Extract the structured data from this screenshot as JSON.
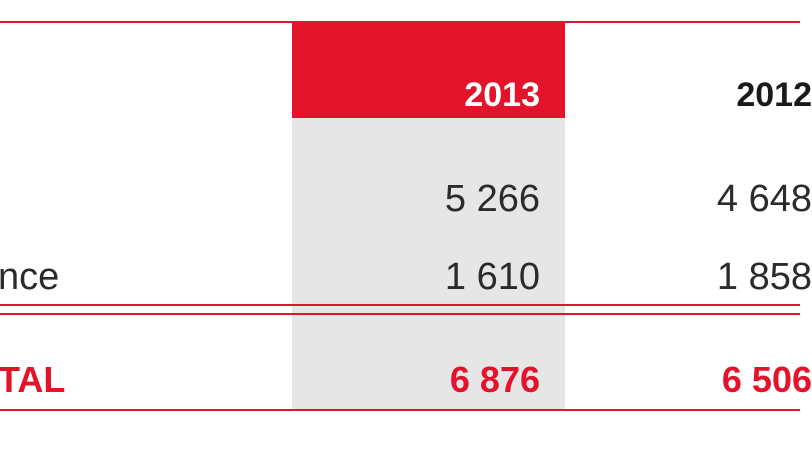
{
  "header": {
    "columns": [
      "2013",
      "2012"
    ]
  },
  "rows": [
    {
      "values": [
        "5 266",
        "4 648"
      ]
    },
    {
      "label": "nce",
      "values": [
        "1 610",
        "1 858"
      ]
    }
  ],
  "total": {
    "label": "TAL",
    "values": [
      "6 876",
      "6 506"
    ]
  }
}
